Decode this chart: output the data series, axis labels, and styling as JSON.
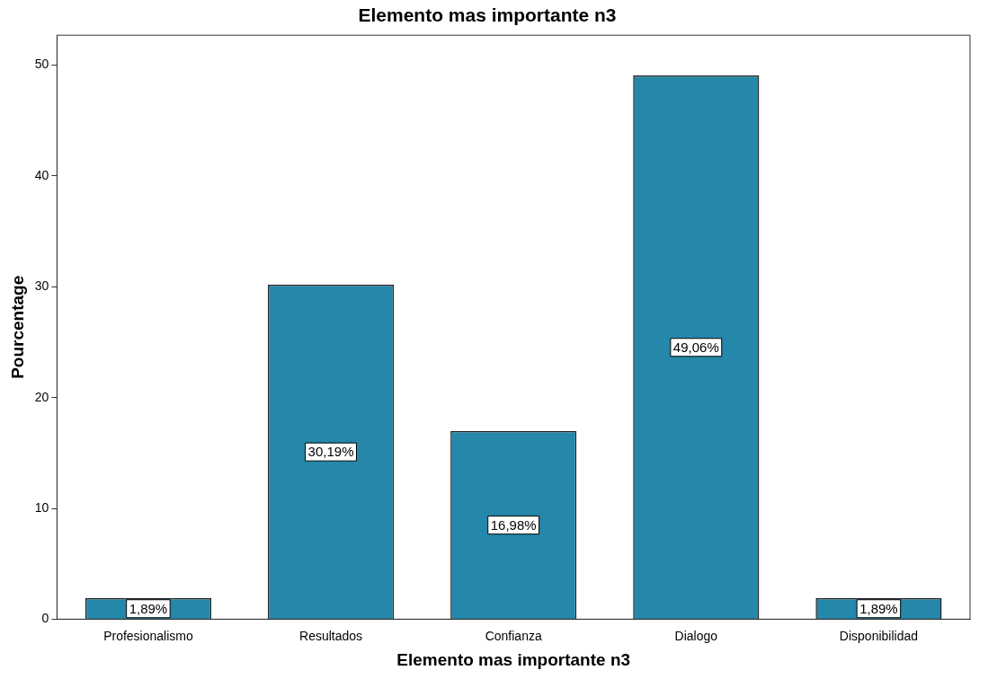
{
  "chart_data": {
    "type": "bar",
    "title": "Elemento mas importante n3",
    "xlabel": "Elemento mas importante n3",
    "ylabel": "Pourcentage",
    "categories": [
      "Profesionalismo",
      "Resultados",
      "Confianza",
      "Dialogo",
      "Disponibilidad"
    ],
    "values": [
      1.89,
      30.19,
      16.98,
      49.06,
      1.89
    ],
    "value_labels": [
      "1,89%",
      "30,19%",
      "16,98%",
      "49,06%",
      "1,89%"
    ],
    "color": "#2587a9",
    "ylim": [
      0,
      52.7
    ],
    "yticks": [
      0,
      10,
      20,
      30,
      40,
      50
    ],
    "grid": false,
    "legend": false
  }
}
